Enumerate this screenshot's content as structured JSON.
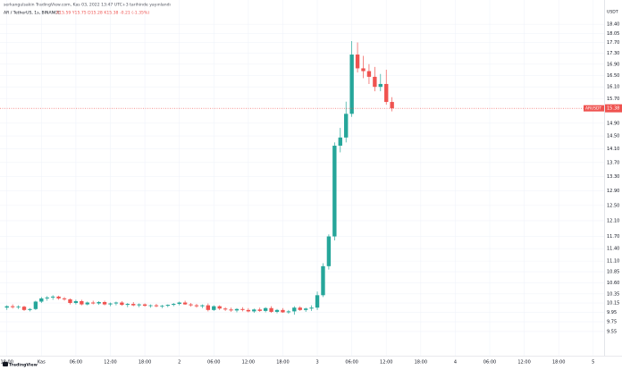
{
  "chart_data": {
    "type": "candlestick",
    "publisher": "serkangulsakin TradingView.com, Kas 03, 2022 13:47 UTC+3 tarihinde yayınlandı",
    "title": "AR / TetherUS, 1s, BINANCE",
    "ohlc_text": "A15.59 Y15.75 D15.28 K15.38 -0.21 (-1.35%)",
    "currency": "USDT",
    "symbol": "ARUSDT",
    "brand": "TradingView",
    "log": true,
    "grid": true,
    "up_color": "#26a69a",
    "down_color": "#ef5350",
    "x": [
      0,
      1,
      2,
      3,
      4,
      5,
      6,
      7,
      8,
      9,
      10,
      11,
      12,
      13,
      14,
      15,
      16,
      17,
      18,
      19,
      20,
      21,
      22,
      23,
      24,
      25,
      26,
      27,
      28,
      29,
      30,
      31,
      32,
      33,
      34,
      35,
      36,
      37,
      38,
      39,
      40,
      41,
      42,
      43,
      44,
      45,
      46,
      47,
      48,
      49,
      50,
      51,
      52,
      53,
      54,
      55,
      56,
      57,
      58,
      59,
      60,
      61,
      62,
      63,
      64,
      65,
      66,
      67
    ],
    "open": [
      10.05,
      10.08,
      10.06,
      10.07,
      10.0,
      10.02,
      10.18,
      10.25,
      10.27,
      10.29,
      10.25,
      10.23,
      10.15,
      10.19,
      10.12,
      10.16,
      10.14,
      10.17,
      10.12,
      10.14,
      10.16,
      10.11,
      10.13,
      10.1,
      10.12,
      10.09,
      10.1,
      10.08,
      10.09,
      10.11,
      10.13,
      10.16,
      10.12,
      10.1,
      10.08,
      10.1,
      10.0,
      10.08,
      10.03,
      10.01,
      9.99,
      10.02,
      10.0,
      9.97,
      10.01,
      9.98,
      10.04,
      9.96,
      10.0,
      9.95,
      9.97,
      10.05,
      10.0,
      10.03,
      10.05,
      10.32,
      10.98,
      11.7,
      14.2,
      14.45,
      15.2,
      17.25,
      16.75,
      16.65,
      16.45,
      16.1,
      16.2,
      15.59
    ],
    "high": [
      10.1,
      10.12,
      10.1,
      10.09,
      10.04,
      10.2,
      10.28,
      10.3,
      10.32,
      10.31,
      10.28,
      10.25,
      10.22,
      10.22,
      10.18,
      10.2,
      10.19,
      10.2,
      10.16,
      10.18,
      10.19,
      10.15,
      10.17,
      10.14,
      10.14,
      10.12,
      10.13,
      10.11,
      10.12,
      10.15,
      10.18,
      10.2,
      10.15,
      10.13,
      10.12,
      10.14,
      10.1,
      10.1,
      10.06,
      10.05,
      10.04,
      10.06,
      10.04,
      10.03,
      10.05,
      10.06,
      10.08,
      10.02,
      10.04,
      10.0,
      10.08,
      10.08,
      10.05,
      10.1,
      10.4,
      11.05,
      11.75,
      14.3,
      14.75,
      15.6,
      17.75,
      17.7,
      17.2,
      16.9,
      16.8,
      16.55,
      16.7,
      15.75
    ],
    "low": [
      10.0,
      10.03,
      10.02,
      9.98,
      9.97,
      10.0,
      10.15,
      10.2,
      10.22,
      10.22,
      10.2,
      10.12,
      10.12,
      10.1,
      10.1,
      10.12,
      10.11,
      10.1,
      10.08,
      10.1,
      10.09,
      10.06,
      10.08,
      10.06,
      10.07,
      10.05,
      10.06,
      10.04,
      10.06,
      10.08,
      10.1,
      10.11,
      10.07,
      10.05,
      10.04,
      9.97,
      9.98,
      10.0,
      9.98,
      9.96,
      9.95,
      9.97,
      9.95,
      9.94,
      9.96,
      9.95,
      9.94,
      9.93,
      9.94,
      9.92,
      9.9,
      9.98,
      9.96,
      9.98,
      10.0,
      10.28,
      10.9,
      11.6,
      14.0,
      14.3,
      15.1,
      16.6,
      16.4,
      16.2,
      15.95,
      15.95,
      15.5,
      15.28
    ],
    "close": [
      10.08,
      10.06,
      10.07,
      10.0,
      10.02,
      10.18,
      10.25,
      10.27,
      10.29,
      10.25,
      10.23,
      10.15,
      10.19,
      10.12,
      10.16,
      10.14,
      10.17,
      10.12,
      10.14,
      10.16,
      10.11,
      10.13,
      10.1,
      10.12,
      10.09,
      10.1,
      10.08,
      10.09,
      10.11,
      10.13,
      10.16,
      10.12,
      10.1,
      10.08,
      10.1,
      10.0,
      10.08,
      10.03,
      10.01,
      9.99,
      10.02,
      10.0,
      9.97,
      10.01,
      9.98,
      10.04,
      9.96,
      10.0,
      9.95,
      9.97,
      10.05,
      10.0,
      10.03,
      10.05,
      10.32,
      10.98,
      11.7,
      14.2,
      14.45,
      15.2,
      17.25,
      16.75,
      16.65,
      16.45,
      16.1,
      16.2,
      15.59,
      15.38
    ],
    "xlim": [
      -1.2,
      103.9
    ],
    "ylim": [
      9.07,
      19.38
    ],
    "yticks": [
      {
        "value": 18.4,
        "label": "18.40"
      },
      18.05,
      {
        "value": 17.7,
        "label": "17.70"
      },
      {
        "value": 17.3,
        "label": "17.30"
      },
      {
        "value": 16.9,
        "label": "16.90"
      },
      {
        "value": 16.5,
        "label": "16.50"
      },
      {
        "value": 16.1,
        "label": "16.10"
      },
      {
        "value": 15.7,
        "label": "15.70"
      },
      {
        "value": 14.9,
        "label": "14.90"
      },
      {
        "value": 14.5,
        "label": "14.50"
      },
      {
        "value": 14.1,
        "label": "14.10"
      },
      {
        "value": 13.7,
        "label": "13.70"
      },
      {
        "value": 13.3,
        "label": "13.30"
      },
      {
        "value": 12.9,
        "label": "12.90"
      },
      {
        "value": 12.5,
        "label": "12.50"
      },
      {
        "value": 12.1,
        "label": "12.10"
      },
      {
        "value": 11.7,
        "label": "11.70"
      },
      {
        "value": 11.4,
        "label": "11.40"
      },
      {
        "value": 11.1,
        "label": "11.10"
      },
      10.85,
      {
        "value": 10.6,
        "label": "10.60"
      },
      10.35,
      10.15,
      9.95,
      9.75,
      9.55
    ],
    "xticks": [
      {
        "value": 0,
        "label": "18:00"
      },
      {
        "value": 6,
        "label": "Kas"
      },
      {
        "value": 12,
        "label": "06:00"
      },
      {
        "value": 18,
        "label": "12:00"
      },
      {
        "value": 24,
        "label": "18:00"
      },
      {
        "value": 30,
        "label": "2"
      },
      {
        "value": 36,
        "label": "06:00"
      },
      {
        "value": 42,
        "label": "12:00"
      },
      {
        "value": 48,
        "label": "18:00"
      },
      {
        "value": 54,
        "label": "3"
      },
      {
        "value": 60,
        "label": "06:00"
      },
      {
        "value": 66,
        "label": "12:00"
      },
      {
        "value": 72,
        "label": "18:00"
      },
      {
        "value": 78,
        "label": "4"
      },
      {
        "value": 84,
        "label": "06:00"
      },
      {
        "value": 90,
        "label": "12:00"
      },
      {
        "value": 96,
        "label": "18:00"
      },
      {
        "value": 102,
        "label": "5"
      }
    ]
  }
}
